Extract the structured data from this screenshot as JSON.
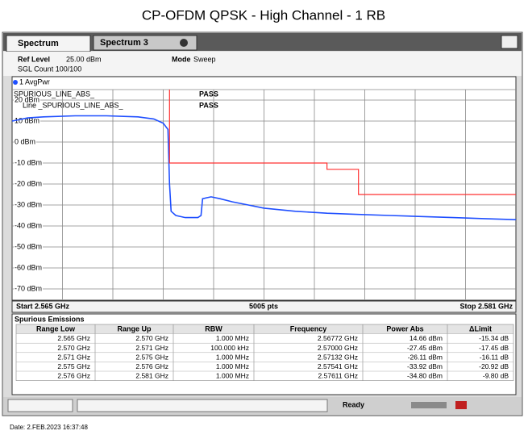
{
  "title": "CP-OFDM QPSK - High Channel - 1 RB",
  "tabs": [
    "Spectrum",
    "Spectrum 3"
  ],
  "info": {
    "ref_level_label": "Ref Level",
    "ref_level": "25.00 dBm",
    "mode_label": "Mode",
    "mode": "Sweep",
    "sgl_count": "SGL Count 100/100"
  },
  "chart_data": {
    "type": "line",
    "xlim": [
      2.565,
      2.581
    ],
    "ylim": [
      -75,
      25
    ],
    "x_divisions": 10,
    "yticks": [
      {
        "value": 20,
        "label": "20 dBm"
      },
      {
        "value": 10,
        "label": "10 dBm"
      },
      {
        "value": 0,
        "label": "0 dBm"
      },
      {
        "value": -10,
        "label": "-10 dBm"
      },
      {
        "value": -20,
        "label": "-20 dBm"
      },
      {
        "value": -30,
        "label": "-30 dBm"
      },
      {
        "value": -40,
        "label": "-40 dBm"
      },
      {
        "value": -50,
        "label": "-50 dBm"
      },
      {
        "value": -60,
        "label": "-60 dBm"
      },
      {
        "value": -70,
        "label": "-70 dBm"
      }
    ],
    "grid": true,
    "series": [
      {
        "name": "1 AvgPwr",
        "color": "#1f4fff",
        "x": [
          2.565,
          2.5655,
          2.566,
          2.567,
          2.568,
          2.569,
          2.5695,
          2.5698,
          2.56995,
          2.57,
          2.57005,
          2.5702,
          2.5705,
          2.5709,
          2.57095,
          2.571,
          2.57105,
          2.57132,
          2.5716,
          2.572,
          2.5725,
          2.573,
          2.574,
          2.575,
          2.576,
          2.577,
          2.578,
          2.579,
          2.58,
          2.581
        ],
        "values": [
          10,
          11.5,
          12,
          12.5,
          12.5,
          12,
          11,
          9,
          6,
          -20,
          -33,
          -35,
          -36,
          -36,
          -35.5,
          -35,
          -27,
          -26.11,
          -27,
          -28.5,
          -30,
          -31.5,
          -33,
          -33.92,
          -34.5,
          -35,
          -35.5,
          -36,
          -36.5,
          -37
        ]
      },
      {
        "name": "SPURIOUS_LINE_ABS_",
        "color": "#ff3030",
        "x": [
          2.57,
          2.57,
          2.575,
          2.575,
          2.576,
          2.576,
          2.581
        ],
        "values": [
          25,
          -10,
          -10,
          -13,
          -13,
          -25,
          -25
        ]
      }
    ],
    "limit_checks": [
      {
        "result": "PASS"
      },
      {
        "label": "Line _SPURIOUS_LINE_ABS_",
        "result": "PASS"
      }
    ],
    "start_label": "Start 2.565 GHz",
    "points_label": "5005 pts",
    "stop_label": "Stop 2.581 GHz"
  },
  "table": {
    "title": "Spurious Emissions",
    "columns": [
      "Range Low",
      "Range Up",
      "RBW",
      "Frequency",
      "Power Abs",
      "ΔLimit"
    ],
    "rows": [
      [
        "2.565 GHz",
        "2.570 GHz",
        "1.000 MHz",
        "2.56772 GHz",
        "14.66 dBm",
        "-15.34 dB"
      ],
      [
        "2.570 GHz",
        "2.571 GHz",
        "100.000 kHz",
        "2.57000 GHz",
        "-27.45 dBm",
        "-17.45 dB"
      ],
      [
        "2.571 GHz",
        "2.575 GHz",
        "1.000 MHz",
        "2.57132 GHz",
        "-26.11 dBm",
        "-16.11 dB"
      ],
      [
        "2.575 GHz",
        "2.576 GHz",
        "1.000 MHz",
        "2.57541 GHz",
        "-33.92 dBm",
        "-20.92 dB"
      ],
      [
        "2.576 GHz",
        "2.581 GHz",
        "1.000 MHz",
        "2.57611 GHz",
        "-34.80 dBm",
        "-9.80 dB"
      ]
    ]
  },
  "status": "Ready",
  "date": "Date: 2.FEB.2023  16:37:48"
}
